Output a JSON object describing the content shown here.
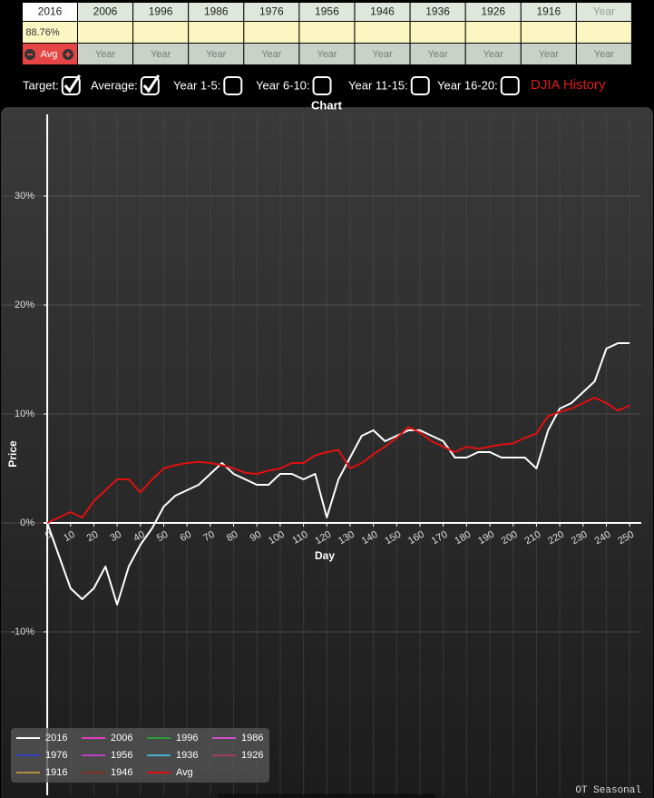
{
  "table": {
    "header": [
      "2016",
      "2006",
      "1996",
      "1986",
      "1976",
      "1956",
      "1946",
      "1936",
      "1926",
      "1916",
      "Year"
    ],
    "values_row": [
      "88.76%"
    ],
    "avg_button": "Avg",
    "year_row": [
      "Year",
      "Year",
      "Year",
      "Year",
      "Year",
      "Year",
      "Year",
      "Year",
      "Year",
      "Year"
    ]
  },
  "controls": [
    {
      "label": "Target:",
      "checked": true
    },
    {
      "label": "Average:",
      "checked": true
    },
    {
      "label": "Year 1-5:",
      "checked": false
    },
    {
      "label": "Year 6-10:",
      "checked": false
    },
    {
      "label": "Year 11-15:",
      "checked": false
    },
    {
      "label": "Year 16-20:",
      "checked": false
    }
  ],
  "link": "DJIA History",
  "footer": "OT Seasonal",
  "chart_data": {
    "type": "line",
    "title": "Chart",
    "x_label": "Day",
    "y_label": "Price",
    "xlim": [
      -19.5,
      255
    ],
    "ylim": [
      -25,
      37.5
    ],
    "xticks": [
      0,
      10,
      20,
      30,
      40,
      50,
      60,
      70,
      80,
      90,
      100,
      110,
      120,
      130,
      140,
      150,
      160,
      170,
      180,
      190,
      200,
      210,
      220,
      230,
      240,
      250
    ],
    "yticks": [
      {
        "value": -10,
        "label": "-10%"
      },
      {
        "value": 0,
        "label": "0%"
      },
      {
        "value": 10,
        "label": "10%"
      },
      {
        "value": 20,
        "label": "20%"
      },
      {
        "value": 30,
        "label": "30%"
      }
    ],
    "grid": true,
    "x": [
      0,
      5,
      10,
      15,
      20,
      25,
      30,
      35,
      40,
      45,
      50,
      55,
      60,
      65,
      70,
      75,
      80,
      85,
      90,
      95,
      100,
      105,
      110,
      115,
      120,
      125,
      130,
      135,
      140,
      145,
      150,
      155,
      160,
      165,
      170,
      175,
      180,
      185,
      190,
      195,
      200,
      205,
      210,
      215,
      220,
      225,
      230,
      235,
      240,
      245,
      250
    ],
    "series": [
      {
        "name": "2016",
        "color": "#ffffff",
        "values": [
          0,
          -3,
          -6,
          -7,
          -6,
          -4,
          -7.5,
          -4,
          -2,
          -0.5,
          1.5,
          2.5,
          3,
          3.5,
          4.5,
          5.5,
          4.5,
          4,
          3.5,
          3.5,
          4.5,
          4.5,
          4,
          4.5,
          0.5,
          4,
          6,
          8,
          8.5,
          7.5,
          8,
          8.5,
          8.5,
          8,
          7.5,
          6,
          6,
          6.5,
          6.5,
          6,
          6,
          6,
          5,
          8.5,
          10.5,
          11,
          12,
          13,
          16,
          16.5,
          16.5
        ]
      },
      {
        "name": "2006",
        "color": "#e040c0",
        "values": [
          null,
          null,
          null,
          null,
          null,
          null,
          null,
          null,
          null,
          null,
          null,
          null,
          null,
          null,
          null,
          null,
          null,
          null,
          null,
          null,
          null,
          null,
          null,
          null,
          null,
          null,
          null,
          null,
          null,
          null,
          null,
          null,
          null,
          null,
          null,
          null,
          null,
          null,
          null,
          null,
          null,
          null,
          null,
          null,
          null,
          null,
          null,
          null,
          null,
          null,
          null
        ]
      },
      {
        "name": "1996",
        "color": "#2a9d3a",
        "values": [
          null,
          null,
          null,
          null,
          null,
          null,
          null,
          null,
          null,
          null,
          null,
          null,
          null,
          null,
          null,
          null,
          null,
          null,
          null,
          null,
          null,
          null,
          null,
          null,
          null,
          null,
          null,
          null,
          null,
          null,
          null,
          null,
          null,
          null,
          null,
          null,
          null,
          null,
          null,
          null,
          null,
          null,
          null,
          null,
          null,
          null,
          null,
          null,
          null,
          null,
          null
        ]
      },
      {
        "name": "1986",
        "color": "#d050d0",
        "values": [
          null,
          null,
          null,
          null,
          null,
          null,
          null,
          null,
          null,
          null,
          null,
          null,
          null,
          null,
          null,
          null,
          null,
          null,
          null,
          null,
          null,
          null,
          null,
          null,
          null,
          null,
          null,
          null,
          null,
          null,
          null,
          null,
          null,
          null,
          null,
          null,
          null,
          null,
          null,
          null,
          null,
          null,
          null,
          null,
          null,
          null,
          null,
          null,
          null,
          null,
          null
        ]
      },
      {
        "name": "1976",
        "color": "#3040c0",
        "values": [
          null,
          null,
          null,
          null,
          null,
          null,
          null,
          null,
          null,
          null,
          null,
          null,
          null,
          null,
          null,
          null,
          null,
          null,
          null,
          null,
          null,
          null,
          null,
          null,
          null,
          null,
          null,
          null,
          null,
          null,
          null,
          null,
          null,
          null,
          null,
          null,
          null,
          null,
          null,
          null,
          null,
          null,
          null,
          null,
          null,
          null,
          null,
          null,
          null,
          null,
          null
        ]
      },
      {
        "name": "1956",
        "color": "#c040c0",
        "values": [
          null,
          null,
          null,
          null,
          null,
          null,
          null,
          null,
          null,
          null,
          null,
          null,
          null,
          null,
          null,
          null,
          null,
          null,
          null,
          null,
          null,
          null,
          null,
          null,
          null,
          null,
          null,
          null,
          null,
          null,
          null,
          null,
          null,
          null,
          null,
          null,
          null,
          null,
          null,
          null,
          null,
          null,
          null,
          null,
          null,
          null,
          null,
          null,
          null,
          null,
          null
        ]
      },
      {
        "name": "1936",
        "color": "#40b0d0",
        "values": [
          null,
          null,
          null,
          null,
          null,
          null,
          null,
          null,
          null,
          null,
          null,
          null,
          null,
          null,
          null,
          null,
          null,
          null,
          null,
          null,
          null,
          null,
          null,
          null,
          null,
          null,
          null,
          null,
          null,
          null,
          null,
          null,
          null,
          null,
          null,
          null,
          null,
          null,
          null,
          null,
          null,
          null,
          null,
          null,
          null,
          null,
          null,
          null,
          null,
          null,
          null
        ]
      },
      {
        "name": "1926",
        "color": "#a04060",
        "values": [
          null,
          null,
          null,
          null,
          null,
          null,
          null,
          null,
          null,
          null,
          null,
          null,
          null,
          null,
          null,
          null,
          null,
          null,
          null,
          null,
          null,
          null,
          null,
          null,
          null,
          null,
          null,
          null,
          null,
          null,
          null,
          null,
          null,
          null,
          null,
          null,
          null,
          null,
          null,
          null,
          null,
          null,
          null,
          null,
          null,
          null,
          null,
          null,
          null,
          null,
          null
        ]
      },
      {
        "name": "1916",
        "color": "#b09040",
        "values": [
          null,
          null,
          null,
          null,
          null,
          null,
          null,
          null,
          null,
          null,
          null,
          null,
          null,
          null,
          null,
          null,
          null,
          null,
          null,
          null,
          null,
          null,
          null,
          null,
          null,
          null,
          null,
          null,
          null,
          null,
          null,
          null,
          null,
          null,
          null,
          null,
          null,
          null,
          null,
          null,
          null,
          null,
          null,
          null,
          null,
          null,
          null,
          null,
          null,
          null,
          null
        ]
      },
      {
        "name": "1946",
        "color": "#803020",
        "values": [
          null,
          null,
          null,
          null,
          null,
          null,
          null,
          null,
          null,
          null,
          null,
          null,
          null,
          null,
          null,
          null,
          null,
          null,
          null,
          null,
          null,
          null,
          null,
          null,
          null,
          null,
          null,
          null,
          null,
          null,
          null,
          null,
          null,
          null,
          null,
          null,
          null,
          null,
          null,
          null,
          null,
          null,
          null,
          null,
          null,
          null,
          null,
          null,
          null,
          null,
          null
        ]
      },
      {
        "name": "Avg",
        "color": "#e01010",
        "values": [
          0,
          0.5,
          1,
          0.5,
          2,
          3,
          4,
          4,
          2.8,
          4,
          5,
          5.3,
          5.5,
          5.6,
          5.5,
          5.3,
          5,
          4.6,
          4.5,
          4.8,
          5,
          5.5,
          5.5,
          6.2,
          6.5,
          6.7,
          5,
          5.5,
          6.3,
          7,
          7.8,
          8.8,
          8.3,
          7.5,
          7,
          6.5,
          7,
          6.8,
          7,
          7.2,
          7.3,
          7.8,
          8.2,
          9.8,
          10.2,
          10.5,
          11,
          11.5,
          11,
          10.3,
          10.8
        ]
      }
    ]
  }
}
